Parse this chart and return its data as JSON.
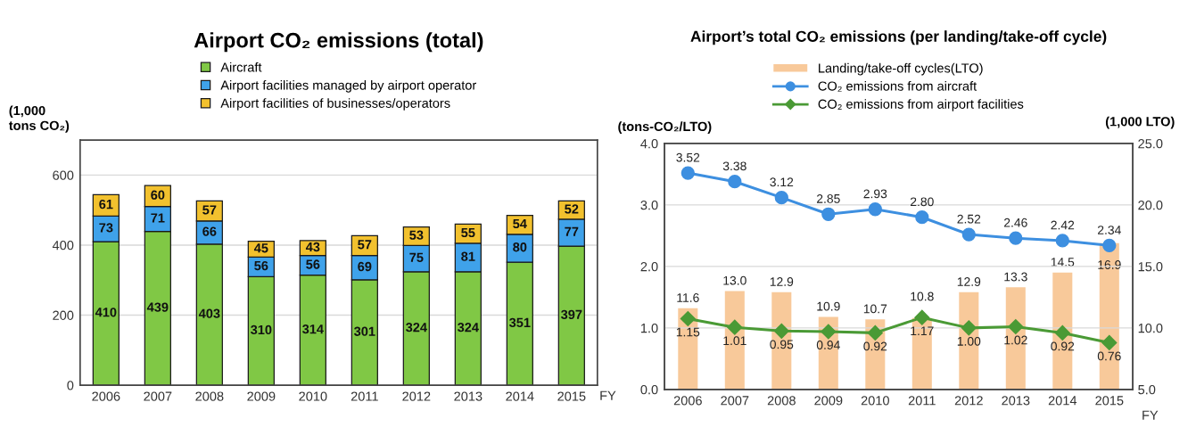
{
  "chart_data": [
    {
      "type": "bar",
      "title": "Airport CO₂ emissions (total)",
      "ylabel": "(1,000\ntons CO₂)",
      "xlabel": "FY",
      "categories": [
        "2006",
        "2007",
        "2008",
        "2009",
        "2010",
        "2011",
        "2012",
        "2013",
        "2014",
        "2015"
      ],
      "stacked": true,
      "series": [
        {
          "name": "Aircraft",
          "color": "#80c845",
          "values": [
            410,
            439,
            403,
            310,
            314,
            301,
            324,
            324,
            351,
            397
          ]
        },
        {
          "name": "Airport facilities managed by airport operator",
          "color": "#3fa2ea",
          "values": [
            73,
            71,
            66,
            56,
            56,
            69,
            75,
            81,
            80,
            77
          ]
        },
        {
          "name": "Airport facilities of businesses/operators",
          "color": "#f2c12e",
          "values": [
            61,
            60,
            57,
            45,
            43,
            57,
            53,
            55,
            54,
            52
          ]
        }
      ],
      "ylim": [
        0,
        700
      ],
      "yticks": [
        0,
        200,
        400,
        600
      ],
      "grid": "y",
      "legend": "top",
      "data_labels": true
    },
    {
      "type": "line",
      "title": "Airport’s total CO₂ emissions (per landing/take-off cycle)",
      "ylabel": "(tons-CO₂/LTO)",
      "y2label": "(1,000 LTO)",
      "xlabel": "FY",
      "categories": [
        "2006",
        "2007",
        "2008",
        "2009",
        "2010",
        "2011",
        "2012",
        "2013",
        "2014",
        "2015"
      ],
      "series": [
        {
          "name": "Landing/take-off cycles(LTO)",
          "type": "bar",
          "axis": "y2",
          "color": "#f8c99a",
          "values": [
            11.6,
            13.0,
            12.9,
            10.9,
            10.7,
            10.8,
            12.9,
            13.3,
            14.5,
            16.9
          ],
          "value_labels": [
            "11.6",
            "13.0",
            "12.9",
            "10.9",
            "10.7",
            "10.8",
            "12.9",
            "13.3",
            "14.5",
            "16.9"
          ]
        },
        {
          "name": "CO₂ emissions from aircraft",
          "color": "#3d8fe0",
          "marker": "circle",
          "values": [
            3.52,
            3.38,
            3.12,
            2.85,
            2.93,
            2.8,
            2.52,
            2.46,
            2.42,
            2.34
          ],
          "value_labels": [
            "3.52",
            "3.38",
            "3.12",
            "2.85",
            "2.93",
            "2.80",
            "2.52",
            "2.46",
            "2.42",
            "2.34"
          ]
        },
        {
          "name": "CO₂ emissions from airport facilities",
          "color": "#4a9a35",
          "marker": "diamond",
          "values": [
            1.15,
            1.01,
            0.95,
            0.94,
            0.92,
            1.17,
            1.0,
            1.02,
            0.92,
            0.76
          ],
          "value_labels": [
            "1.15",
            "1.01",
            "0.95",
            "0.94",
            "0.92",
            "1.17",
            "1.00",
            "1.02",
            "0.92",
            "0.76"
          ]
        }
      ],
      "ylim": [
        0,
        4
      ],
      "yticks": [
        {
          "value": 0,
          "label": "0.0"
        },
        {
          "value": 1,
          "label": "1.0"
        },
        {
          "value": 2,
          "label": "2.0"
        },
        {
          "value": 3,
          "label": "3.0"
        },
        {
          "value": 4,
          "label": "4.0"
        }
      ],
      "y2lim": [
        5,
        25
      ],
      "y2ticks": [
        {
          "value": 5,
          "label": "5.0"
        },
        {
          "value": 10,
          "label": "10.0"
        },
        {
          "value": 15,
          "label": "15.0"
        },
        {
          "value": 20,
          "label": "20.0"
        },
        {
          "value": 25,
          "label": "25.0"
        }
      ],
      "grid": "y",
      "legend": "top"
    }
  ]
}
